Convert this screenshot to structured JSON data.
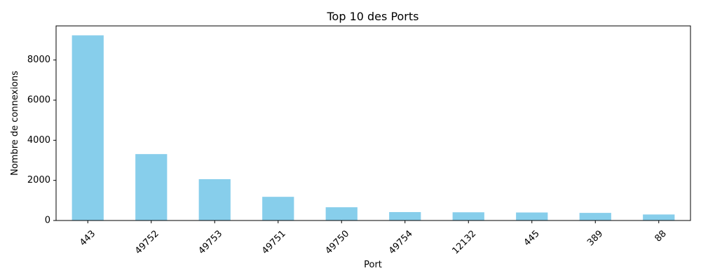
{
  "chart_data": {
    "type": "bar",
    "title": "Top 10 des Ports",
    "xlabel": "Port",
    "ylabel": "Nombre de connexions",
    "categories": [
      "443",
      "49752",
      "49753",
      "49751",
      "49750",
      "49754",
      "12132",
      "445",
      "389",
      "88"
    ],
    "values": [
      9230,
      3310,
      2060,
      1180,
      660,
      420,
      410,
      400,
      380,
      300
    ],
    "ylim": [
      0,
      9700
    ],
    "yticks": [
      0,
      2000,
      4000,
      6000,
      8000
    ],
    "ytick_labels": [
      "0",
      "2000",
      "4000",
      "6000",
      "8000"
    ],
    "bar_color": "#87ceeb",
    "grid": false,
    "legend": "none"
  }
}
